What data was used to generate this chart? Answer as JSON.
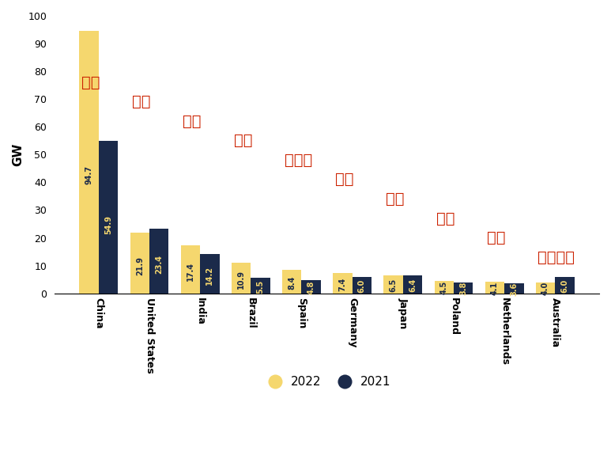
{
  "categories": [
    "China",
    "United States",
    "India",
    "Brazil",
    "Spain",
    "Germany",
    "Japan",
    "Poland",
    "Netherlands",
    "Australia"
  ],
  "values_2022": [
    94.7,
    21.9,
    17.4,
    10.9,
    8.4,
    7.4,
    6.5,
    4.5,
    4.1,
    4.0
  ],
  "values_2021": [
    54.9,
    23.4,
    14.2,
    5.5,
    4.8,
    6.0,
    6.4,
    3.8,
    3.6,
    6.0
  ],
  "chinese_labels": [
    "中国",
    "美国",
    "印度",
    "巴西",
    "西班牙",
    "德国",
    "日本",
    "波兰",
    "荷兰",
    "澳大利亚"
  ],
  "color_2022": "#F5D76E",
  "color_2021": "#1B2A4A",
  "ylabel": "GW",
  "ylim": [
    0,
    100
  ],
  "yticks": [
    0,
    10,
    20,
    30,
    40,
    50,
    60,
    70,
    80,
    90,
    100
  ],
  "bar_width": 0.38,
  "chinese_label_color": "#CC2200",
  "chinese_label_fontsize": 14,
  "value_label_fontsize": 7,
  "value_label_color_2022": "#1B2A4A",
  "value_label_color_2021": "#F5D76E",
  "background_color": "#FFFFFF",
  "legend_2022": "2022",
  "legend_2021": "2021",
  "chinese_y_positions": [
    76,
    69,
    62,
    55,
    48,
    41,
    34,
    27,
    20,
    13
  ],
  "chinese_x_positions": [
    0,
    1,
    2,
    3,
    4,
    5,
    6,
    7,
    8,
    9
  ]
}
